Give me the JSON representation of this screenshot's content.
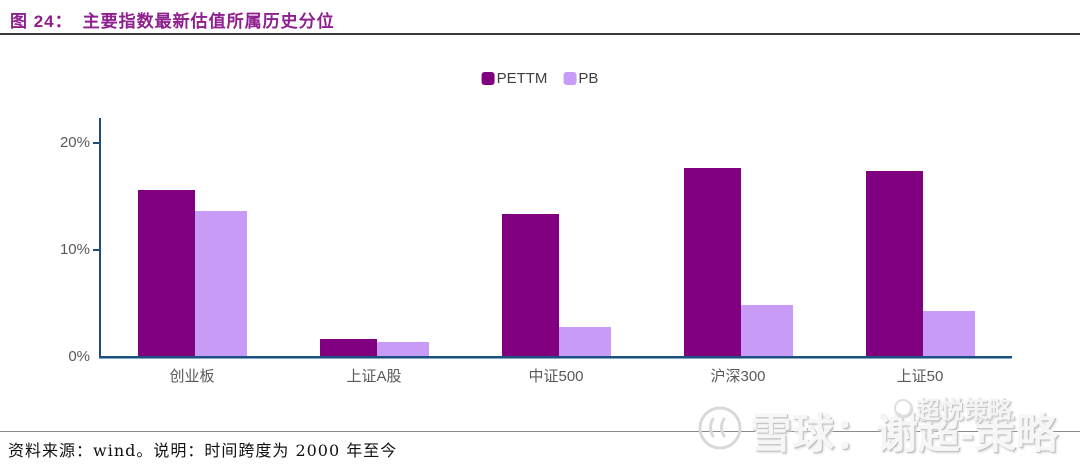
{
  "header": {
    "title_prefix": "图 24：",
    "title_text": "主要指数最新估值所属历史分位"
  },
  "chart_data": {
    "type": "bar",
    "title": "主要指数最新估值所属历史分位",
    "categories": [
      "创业板",
      "上证A股",
      "中证500",
      "沪深300",
      "上证50"
    ],
    "series": [
      {
        "name": "PETTM",
        "color": "#800080",
        "values": [
          15.6,
          1.7,
          13.4,
          17.7,
          17.4
        ]
      },
      {
        "name": "PB",
        "color": "#C89BF6",
        "values": [
          13.6,
          1.4,
          2.8,
          4.9,
          4.3
        ]
      }
    ],
    "xlabel": "",
    "ylabel": "",
    "ylim": [
      0,
      22
    ],
    "yticks": [
      {
        "label": "0%",
        "value": 0
      },
      {
        "label": "10%",
        "value": 10
      },
      {
        "label": "20%",
        "value": 20
      }
    ],
    "grid": false,
    "legend_position": "top-center",
    "axis_color": "#1F4E79"
  },
  "footer": {
    "source_note": "资料来源：wind。说明：时间跨度为 2000 年至今"
  },
  "watermark": {
    "big_text": "雪球：谢超-策略",
    "small_text": "超悦策略"
  }
}
